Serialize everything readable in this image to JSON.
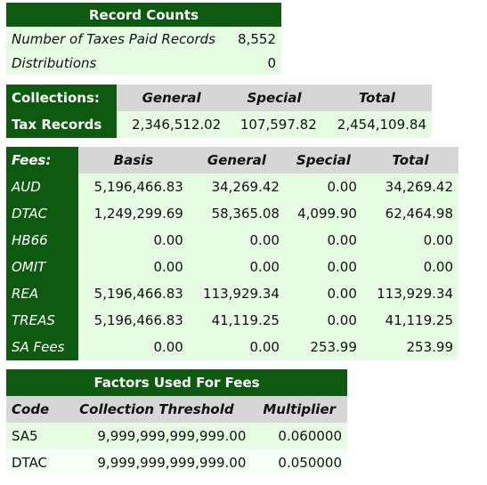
{
  "record_counts": {
    "title": "Record Counts",
    "rows": [
      {
        "label": "Number of Taxes Paid Records",
        "value": "8,552"
      },
      {
        "label": "Distributions",
        "value": "0"
      }
    ]
  },
  "collections": {
    "heading": "Collections:",
    "columns": [
      "General",
      "Special",
      "Total"
    ],
    "row_label": "Tax Records",
    "values": [
      "2,346,512.02",
      "107,597.82",
      "2,454,109.84"
    ]
  },
  "fees": {
    "heading": "Fees:",
    "columns": [
      "Basis",
      "General",
      "Special",
      "Total"
    ],
    "rows": [
      {
        "code": "AUD",
        "values": [
          "5,196,466.83",
          "34,269.42",
          "0.00",
          "34,269.42"
        ]
      },
      {
        "code": "DTAC",
        "values": [
          "1,249,299.69",
          "58,365.08",
          "4,099.90",
          "62,464.98"
        ]
      },
      {
        "code": "HB66",
        "values": [
          "0.00",
          "0.00",
          "0.00",
          "0.00"
        ]
      },
      {
        "code": "OMIT",
        "values": [
          "0.00",
          "0.00",
          "0.00",
          "0.00"
        ]
      },
      {
        "code": "REA",
        "values": [
          "5,196,466.83",
          "113,929.34",
          "0.00",
          "113,929.34"
        ]
      },
      {
        "code": "TREAS",
        "values": [
          "5,196,466.83",
          "41,119.25",
          "0.00",
          "41,119.25"
        ]
      },
      {
        "code": "SA Fees",
        "values": [
          "0.00",
          "0.00",
          "253.99",
          "253.99"
        ]
      }
    ]
  },
  "factors": {
    "title": "Factors Used For Fees",
    "columns": [
      "Code",
      "Collection Threshold",
      "Multiplier"
    ],
    "rows": [
      {
        "code": "SA5",
        "threshold": "9,999,999,999,999.00",
        "multiplier": "0.060000"
      },
      {
        "code": "DTAC",
        "threshold": "9,999,999,999,999.00",
        "multiplier": "0.050000"
      }
    ]
  }
}
